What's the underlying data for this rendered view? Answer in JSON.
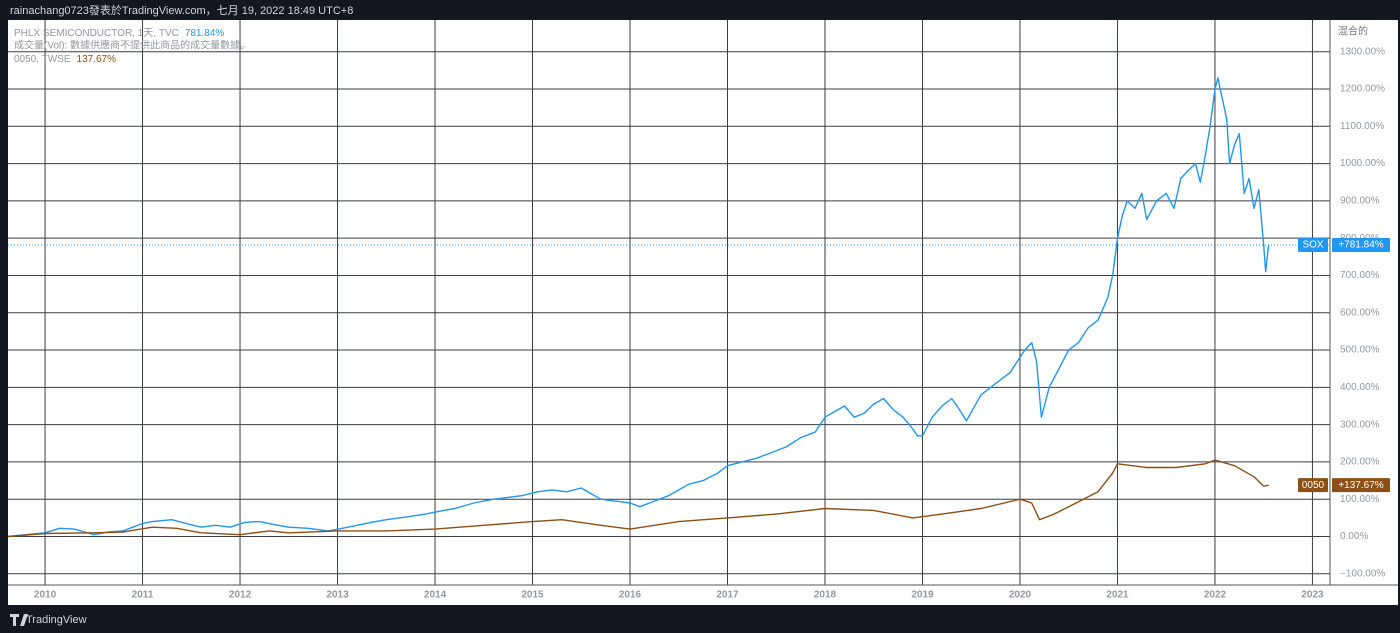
{
  "header": {
    "caption": "rainachang0723發表於TradingView.com，七月 19, 2022 18:49 UTC+8"
  },
  "footer": {
    "brand": "TradingView"
  },
  "chart_data": {
    "type": "line",
    "scale_mode": "混合的",
    "note": "成交量(Vol): 數據供應商不提供此商品的成交量數據。",
    "xlim": [
      2009.62,
      2023.18
    ],
    "xticks": [
      2010,
      2011,
      2012,
      2013,
      2014,
      2015,
      2016,
      2017,
      2018,
      2019,
      2020,
      2021,
      2022,
      2023
    ],
    "ylim": [
      -130,
      1385
    ],
    "yticks": [
      {
        "value": -100,
        "label": "−100.00%"
      },
      {
        "value": 0,
        "label": "0.00%"
      },
      {
        "value": 100,
        "label": "100.00%"
      },
      {
        "value": 200,
        "label": "200.00%"
      },
      {
        "value": 300,
        "label": "300.00%"
      },
      {
        "value": 400,
        "label": "400.00%"
      },
      {
        "value": 500,
        "label": "500.00%"
      },
      {
        "value": 600,
        "label": "600.00%"
      },
      {
        "value": 700,
        "label": "700.00%"
      },
      {
        "value": 800,
        "label": "800.00%"
      },
      {
        "value": 900,
        "label": "900.00%"
      },
      {
        "value": 1000,
        "label": "1000.00%"
      },
      {
        "value": 1100,
        "label": "1100.00%"
      },
      {
        "value": 1200,
        "label": "1200.00%"
      },
      {
        "value": 1300,
        "label": "1300.00%"
      }
    ],
    "grid": true,
    "series": [
      {
        "name": "PHLX SEMICONDUCTOR, 1天, TVC",
        "symbol": "SOX",
        "color": "#2196f3",
        "legend_value": "781.84%",
        "tag_label": "+781.84%",
        "dotted_last": true,
        "x": [
          2009.62,
          2009.8,
          2010.0,
          2010.15,
          2010.3,
          2010.5,
          2010.65,
          2010.8,
          2011.0,
          2011.1,
          2011.3,
          2011.45,
          2011.6,
          2011.75,
          2011.9,
          2012.05,
          2012.2,
          2012.35,
          2012.5,
          2012.7,
          2012.9,
          2013.05,
          2013.2,
          2013.35,
          2013.5,
          2013.7,
          2013.9,
          2014.05,
          2014.2,
          2014.4,
          2014.6,
          2014.75,
          2014.9,
          2015.05,
          2015.2,
          2015.35,
          2015.5,
          2015.6,
          2015.7,
          2015.85,
          2016.0,
          2016.1,
          2016.25,
          2016.4,
          2016.6,
          2016.75,
          2016.9,
          2017.0,
          2017.15,
          2017.3,
          2017.45,
          2017.6,
          2017.75,
          2017.9,
          2018.0,
          2018.1,
          2018.2,
          2018.3,
          2018.4,
          2018.5,
          2018.6,
          2018.7,
          2018.8,
          2018.88,
          2018.95,
          2019.0,
          2019.1,
          2019.2,
          2019.3,
          2019.38,
          2019.45,
          2019.6,
          2019.75,
          2019.9,
          2020.05,
          2020.12,
          2020.17,
          2020.22,
          2020.3,
          2020.4,
          2020.5,
          2020.6,
          2020.7,
          2020.8,
          2020.9,
          2020.95,
          2021.0,
          2021.05,
          2021.1,
          2021.18,
          2021.25,
          2021.3,
          2021.4,
          2021.5,
          2021.58,
          2021.65,
          2021.72,
          2021.8,
          2021.85,
          2021.9,
          2021.95,
          2022.0,
          2022.03,
          2022.07,
          2022.12,
          2022.15,
          2022.2,
          2022.25,
          2022.3,
          2022.35,
          2022.4,
          2022.45,
          2022.5,
          2022.52,
          2022.55
        ],
        "values": [
          0,
          5,
          10,
          22,
          20,
          5,
          12,
          15,
          35,
          40,
          45,
          35,
          25,
          30,
          25,
          38,
          40,
          32,
          25,
          22,
          15,
          22,
          30,
          38,
          45,
          52,
          60,
          68,
          75,
          90,
          100,
          105,
          110,
          120,
          125,
          120,
          130,
          115,
          100,
          95,
          90,
          80,
          95,
          110,
          140,
          150,
          170,
          190,
          200,
          210,
          225,
          240,
          265,
          280,
          320,
          335,
          350,
          320,
          330,
          355,
          370,
          340,
          320,
          295,
          270,
          270,
          320,
          350,
          370,
          340,
          310,
          380,
          410,
          440,
          500,
          520,
          470,
          320,
          400,
          450,
          500,
          520,
          560,
          580,
          640,
          700,
          800,
          860,
          900,
          880,
          920,
          850,
          900,
          920,
          880,
          960,
          980,
          1000,
          950,
          1020,
          1100,
          1200,
          1230,
          1180,
          1120,
          1000,
          1050,
          1080,
          920,
          960,
          880,
          930,
          780,
          710,
          781.84
        ]
      },
      {
        "name": "0050, TWSE",
        "symbol": "0050",
        "color": "#8d4f14",
        "legend_value": "137.67%",
        "tag_label": "+137.67%",
        "dotted_last": false,
        "x": [
          2009.62,
          2010.0,
          2010.5,
          2010.8,
          2011.1,
          2011.35,
          2011.6,
          2012.0,
          2012.3,
          2012.5,
          2013.0,
          2013.5,
          2014.0,
          2014.5,
          2015.0,
          2015.3,
          2015.7,
          2016.0,
          2016.5,
          2017.0,
          2017.5,
          2018.0,
          2018.5,
          2018.9,
          2019.2,
          2019.6,
          2020.0,
          2020.12,
          2020.2,
          2020.35,
          2020.5,
          2020.8,
          2020.95,
          2021.0,
          2021.3,
          2021.6,
          2021.9,
          2022.0,
          2022.2,
          2022.4,
          2022.5,
          2022.55
        ],
        "values": [
          0,
          8,
          10,
          12,
          25,
          22,
          10,
          5,
          15,
          10,
          15,
          15,
          20,
          30,
          40,
          45,
          30,
          20,
          40,
          50,
          60,
          75,
          70,
          50,
          60,
          75,
          100,
          90,
          45,
          60,
          80,
          120,
          170,
          195,
          185,
          185,
          195,
          205,
          190,
          160,
          135,
          137.67
        ]
      }
    ]
  }
}
